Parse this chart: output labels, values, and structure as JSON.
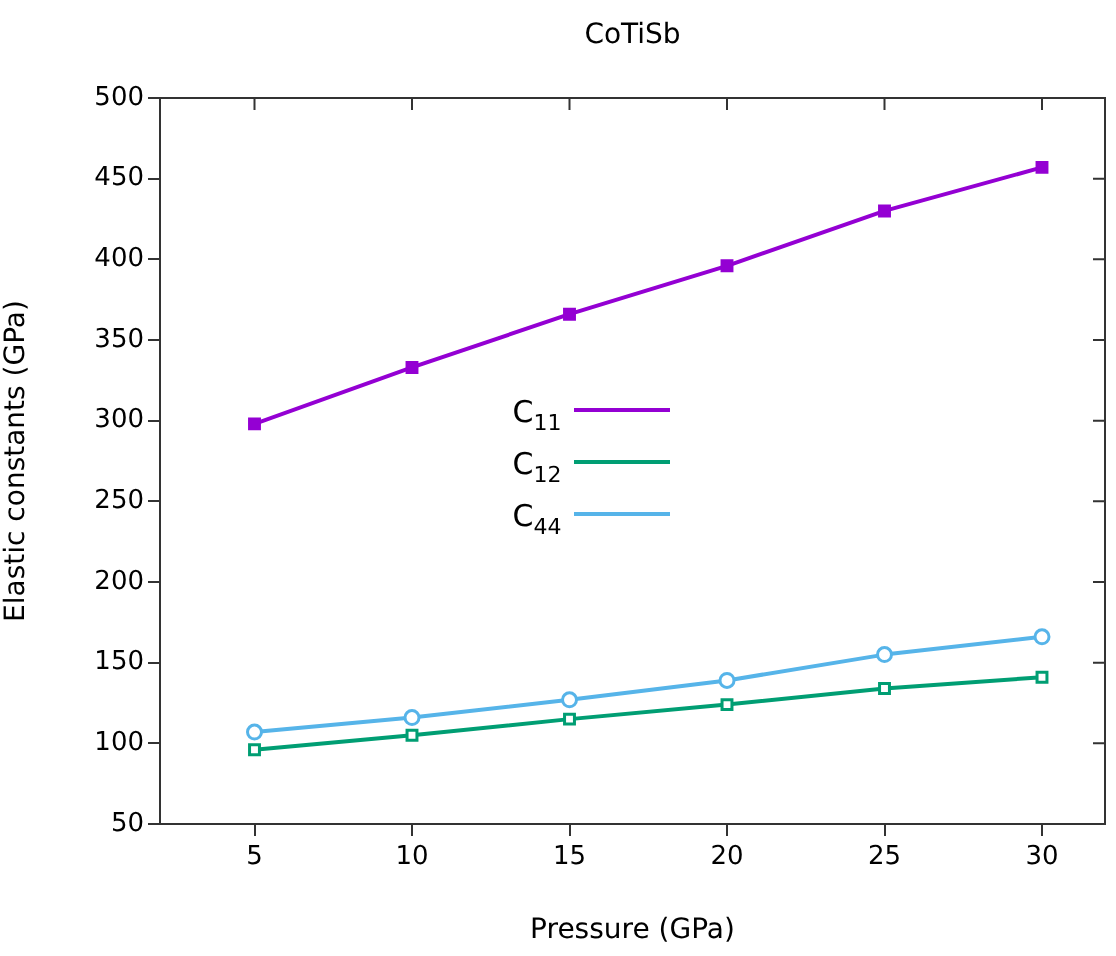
{
  "chart_data": {
    "type": "line",
    "title": "CoTiSb",
    "xlabel": "Pressure (GPa)",
    "ylabel": "Elastic constants (GPa)",
    "x": [
      5,
      10,
      15,
      20,
      25,
      30
    ],
    "series": [
      {
        "name": "C$_{11}$",
        "color": "#9400d3",
        "marker": "square",
        "values": [
          298,
          333,
          366,
          396,
          430,
          457
        ]
      },
      {
        "name": "C$_{12}$",
        "color": "#009e73",
        "marker": "square",
        "values": [
          96,
          105,
          115,
          124,
          134,
          141
        ]
      },
      {
        "name": "C$_{44}$",
        "color": "#56b4e9",
        "marker": "circle",
        "values": [
          107,
          116,
          127,
          139,
          155,
          166
        ]
      }
    ],
    "xlim": [
      2,
      32
    ],
    "xticks": [
      5,
      10,
      15,
      20,
      25,
      30
    ],
    "ylim": [
      50,
      500
    ],
    "yticks": [
      50,
      100,
      150,
      200,
      250,
      300,
      350,
      400,
      450,
      500
    ],
    "legend": "center",
    "grid": false,
    "line_style": "solid"
  }
}
